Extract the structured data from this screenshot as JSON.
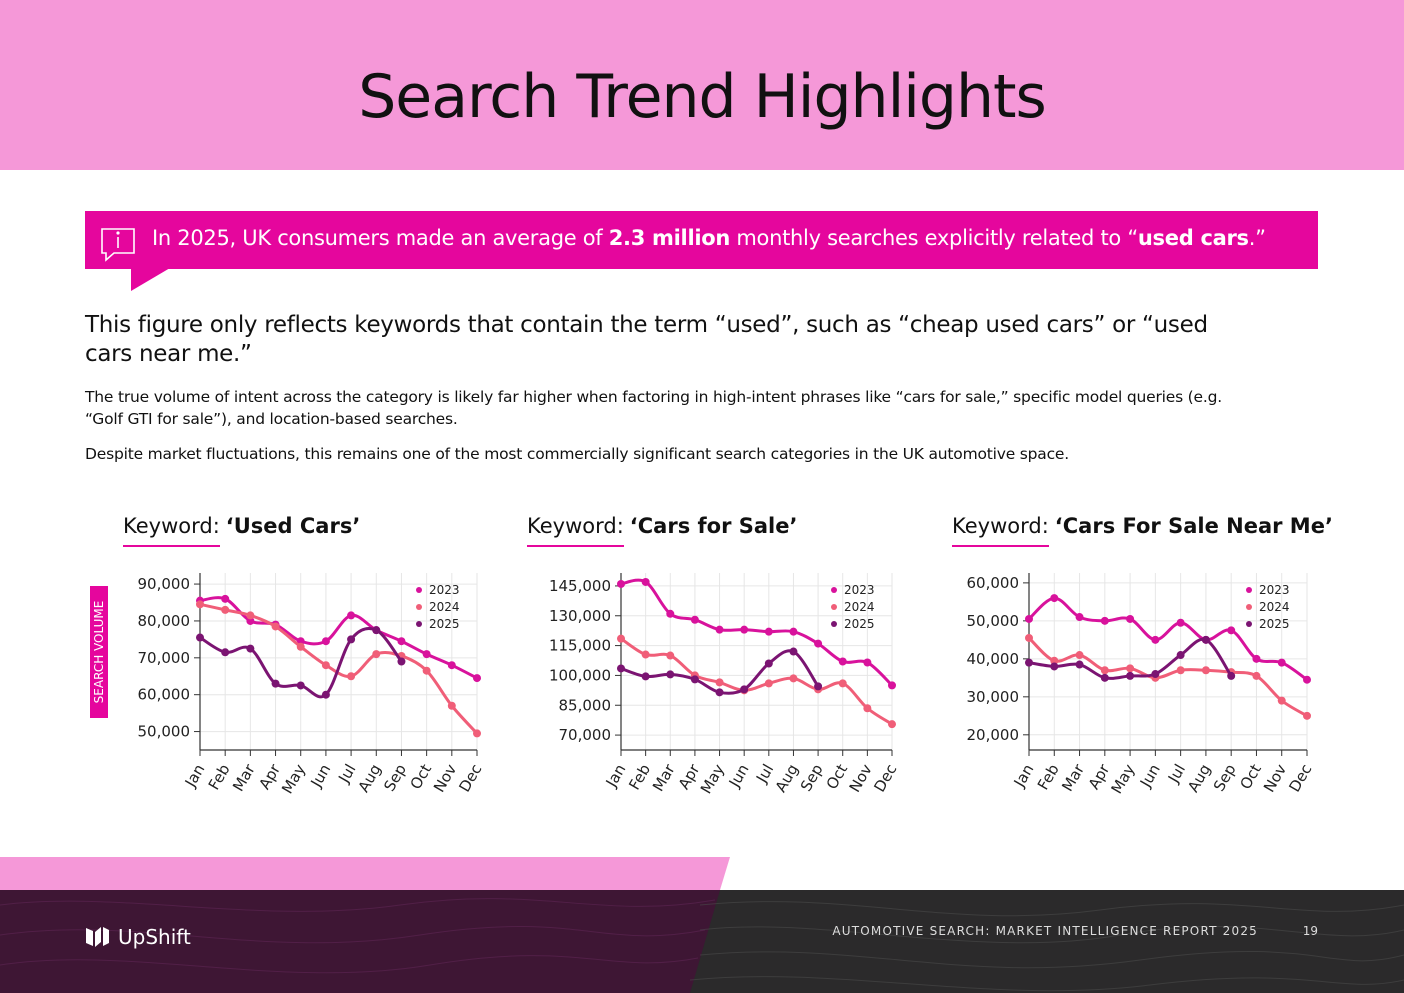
{
  "header": {
    "title": "Search Trend Highlights"
  },
  "callout": {
    "parts": [
      "In 2025, UK consumers made an average of ",
      "2.3 million",
      " monthly searches explicitly related to “",
      "used cars",
      ".”"
    ]
  },
  "body": {
    "lead": "This figure only reflects keywords that contain the term “used”, such as “cheap used cars” or “used cars near me.”",
    "paragraphs": [
      "The true volume of intent across the category is likely far higher when factoring in high-intent phrases like “cars for sale,” specific model queries (e.g. “Golf GTI for sale”), and location-based searches.",
      "Despite market fluctuations, this remains one of the most commercially significant search categories in the UK automotive space."
    ]
  },
  "chart_data": [
    {
      "type": "line",
      "title_prefix": "Keyword:",
      "title": "‘Used Cars’",
      "y_label": "SEARCH VOLUME",
      "categories": [
        "Jan",
        "Feb",
        "Mar",
        "Apr",
        "May",
        "Jun",
        "Jul",
        "Aug",
        "Sep",
        "Oct",
        "Nov",
        "Dec"
      ],
      "series": [
        {
          "name": "2023",
          "color": "#d8129c",
          "values": [
            85500,
            86000,
            80000,
            79000,
            74500,
            74500,
            81500,
            77500,
            74500,
            71000,
            68000,
            64500
          ]
        },
        {
          "name": "2024",
          "color": "#f05e78",
          "values": [
            84500,
            83000,
            81500,
            78500,
            73000,
            68000,
            65000,
            71000,
            70500,
            66500,
            57000,
            49500
          ]
        },
        {
          "name": "2025",
          "color": "#7b1472",
          "values": [
            75500,
            71500,
            72500,
            63000,
            62500,
            60000,
            75000,
            77500,
            69000,
            null,
            null,
            null
          ]
        }
      ],
      "ylim": [
        45000,
        93000
      ],
      "yticks": [
        {
          "value": 50000,
          "label": "50,000"
        },
        {
          "value": 60000,
          "label": "60,000"
        },
        {
          "value": 70000,
          "label": "70,000"
        },
        {
          "value": 80000,
          "label": "80,000"
        },
        {
          "value": 90000,
          "label": "90,000"
        }
      ],
      "grid": true,
      "legend": "upper right"
    },
    {
      "type": "line",
      "title_prefix": "Keyword:",
      "title": "‘Cars for Sale’",
      "categories": [
        "Jan",
        "Feb",
        "Mar",
        "Apr",
        "May",
        "Jun",
        "Jul",
        "Aug",
        "Sep",
        "Oct",
        "Nov",
        "Dec"
      ],
      "series": [
        {
          "name": "2023",
          "color": "#d8129c",
          "values": [
            146000,
            147000,
            131000,
            128000,
            123000,
            123000,
            122000,
            122000,
            116000,
            107000,
            106500,
            95000
          ]
        },
        {
          "name": "2024",
          "color": "#f05e78",
          "values": [
            118500,
            110500,
            110000,
            100000,
            96500,
            92500,
            96000,
            98500,
            93000,
            96000,
            83500,
            75500
          ]
        },
        {
          "name": "2025",
          "color": "#7b1472",
          "values": [
            103500,
            99500,
            100500,
            98000,
            91500,
            93000,
            106000,
            112000,
            94500,
            null,
            null,
            null
          ]
        }
      ],
      "ylim": [
        62500,
        151500
      ],
      "yticks": [
        {
          "value": 70000,
          "label": "70,000"
        },
        {
          "value": 85000,
          "label": "85,000"
        },
        {
          "value": 100000,
          "label": "100,000"
        },
        {
          "value": 115000,
          "label": "115,000"
        },
        {
          "value": 130000,
          "label": "130,000"
        },
        {
          "value": 145000,
          "label": "145,000"
        }
      ],
      "grid": true,
      "legend": "upper right"
    },
    {
      "type": "line",
      "title_prefix": "Keyword:",
      "title": "‘Cars For Sale Near Me’",
      "categories": [
        "Jan",
        "Feb",
        "Mar",
        "Apr",
        "May",
        "Jun",
        "Jul",
        "Aug",
        "Sep",
        "Oct",
        "Nov",
        "Dec"
      ],
      "series": [
        {
          "name": "2023",
          "color": "#d8129c",
          "values": [
            50500,
            56000,
            51000,
            50000,
            50500,
            45000,
            49500,
            45000,
            47500,
            40000,
            39000,
            34500
          ]
        },
        {
          "name": "2024",
          "color": "#f05e78",
          "values": [
            45500,
            39500,
            41000,
            37000,
            37500,
            35000,
            37000,
            37000,
            36500,
            35500,
            29000,
            25000
          ]
        },
        {
          "name": "2025",
          "color": "#7b1472",
          "values": [
            39000,
            38000,
            38500,
            35000,
            35500,
            36000,
            41000,
            45000,
            35500,
            null,
            null,
            null
          ]
        }
      ],
      "ylim": [
        16000,
        62600
      ],
      "yticks": [
        {
          "value": 20000,
          "label": "20,000"
        },
        {
          "value": 30000,
          "label": "30,000"
        },
        {
          "value": 40000,
          "label": "40,000"
        },
        {
          "value": 50000,
          "label": "50,000"
        },
        {
          "value": 60000,
          "label": "60,000"
        }
      ],
      "grid": true,
      "legend": "upper right"
    }
  ],
  "footer": {
    "brand": "UpShift",
    "report": "AUTOMOTIVE SEARCH: MARKET INTELLIGENCE REPORT 2025",
    "page": 19
  }
}
